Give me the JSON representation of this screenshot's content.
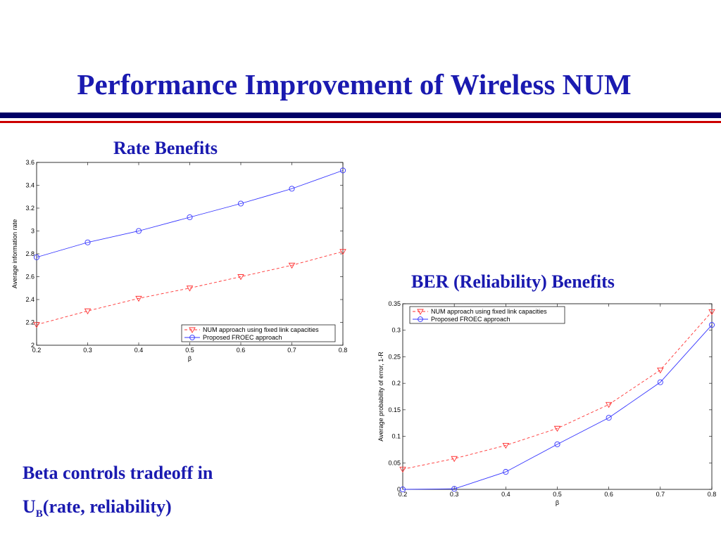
{
  "slide": {
    "title": "Performance Improvement of Wireless NUM",
    "rate_heading": "Rate Benefits",
    "ber_heading": "BER (Reliability) Benefits",
    "note_line1": "Beta controls tradeoff  in",
    "note_u": "U",
    "note_sub": "B",
    "note_rest": "(rate, reliability)"
  },
  "colors": {
    "title": "#1a1ab0",
    "rule_dark": "#000066",
    "rule_red": "#cc0000",
    "series_num": "#ff3333",
    "series_froec": "#3333ff"
  },
  "chart_data": [
    {
      "type": "line",
      "title": "",
      "xlabel": "β",
      "ylabel": "Average information rate",
      "xlim": [
        0.2,
        0.8
      ],
      "ylim": [
        2,
        3.6
      ],
      "xticks": [
        "0.2",
        "0.3",
        "0.4",
        "0.5",
        "0.6",
        "0.7",
        "0.8"
      ],
      "yticks": [
        "2",
        "2.2",
        "2.4",
        "2.6",
        "2.8",
        "3",
        "3.2",
        "3.4",
        "3.6"
      ],
      "x": [
        0.2,
        0.3,
        0.4,
        0.5,
        0.6,
        0.7,
        0.8
      ],
      "series": [
        {
          "name": "NUM approach using fixed link capacities",
          "values": [
            2.18,
            2.3,
            2.41,
            2.5,
            2.6,
            2.7,
            2.82
          ],
          "color": "#ff3333",
          "line": "dashed",
          "marker": "triangle-down"
        },
        {
          "name": "Proposed FROEC approach",
          "values": [
            2.77,
            2.9,
            3.0,
            3.12,
            3.24,
            3.37,
            3.53
          ],
          "color": "#3333ff",
          "line": "solid",
          "marker": "circle"
        }
      ],
      "legend": "bottom-right",
      "grid": false
    },
    {
      "type": "line",
      "title": "",
      "xlabel": "β",
      "ylabel": "Average probability of error, 1-R",
      "xlim": [
        0.2,
        0.8
      ],
      "ylim": [
        0,
        0.35
      ],
      "xticks": [
        "0.2",
        "0.3",
        "0.4",
        "0.5",
        "0.6",
        "0.7",
        "0.8"
      ],
      "yticks": [
        "0",
        "0.05",
        "0.1",
        "0.15",
        "0.2",
        "0.25",
        "0.3",
        "0.35"
      ],
      "x": [
        0.2,
        0.3,
        0.4,
        0.5,
        0.6,
        0.7,
        0.8
      ],
      "series": [
        {
          "name": "NUM approach using fixed link capacities",
          "values": [
            0.038,
            0.058,
            0.083,
            0.115,
            0.16,
            0.225,
            0.335
          ],
          "color": "#ff3333",
          "line": "dashed",
          "marker": "triangle-down"
        },
        {
          "name": "Proposed FROEC approach",
          "values": [
            0.0,
            0.001,
            0.033,
            0.085,
            0.135,
            0.202,
            0.31
          ],
          "color": "#3333ff",
          "line": "solid",
          "marker": "circle"
        }
      ],
      "legend": "top-left",
      "grid": false
    }
  ]
}
